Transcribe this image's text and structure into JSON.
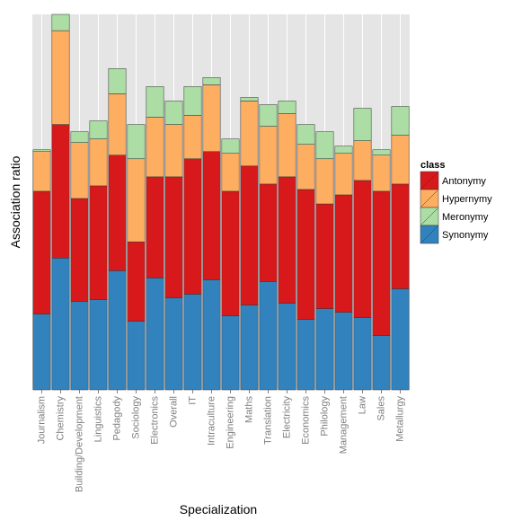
{
  "chart_data": {
    "type": "bar",
    "stacked": true,
    "xlabel": "Specialization",
    "ylabel": "Association ratio",
    "ylim": [
      0,
      1.04
    ],
    "grid": true,
    "legend_position": "right",
    "legend_title": "class",
    "categories": [
      "Journalism",
      "Chemistry",
      "Building/Development",
      "Linguistics",
      "Pedagody",
      "Sociology",
      "Electronics",
      "Overall",
      "IT",
      "Intraculture",
      "Engineering",
      "Maths",
      "Translation",
      "Electricity",
      "Economics",
      "Philology",
      "Management",
      "Law",
      "Sales",
      "Metallurgy"
    ],
    "series": [
      {
        "name": "Synonymy",
        "color": "#3182bd",
        "values": [
          0.21,
          0.365,
          0.245,
          0.25,
          0.33,
          0.19,
          0.31,
          0.255,
          0.265,
          0.305,
          0.205,
          0.235,
          0.3,
          0.24,
          0.195,
          0.225,
          0.215,
          0.2,
          0.15,
          0.28
        ]
      },
      {
        "name": "Antonymy",
        "color": "#d7191c",
        "values": [
          0.34,
          0.37,
          0.285,
          0.315,
          0.32,
          0.22,
          0.28,
          0.335,
          0.375,
          0.355,
          0.345,
          0.385,
          0.27,
          0.35,
          0.36,
          0.29,
          0.325,
          0.38,
          0.4,
          0.29
        ]
      },
      {
        "name": "Hypernymy",
        "color": "#fdae61",
        "values": [
          0.11,
          0.26,
          0.155,
          0.13,
          0.17,
          0.23,
          0.165,
          0.145,
          0.12,
          0.185,
          0.105,
          0.18,
          0.16,
          0.175,
          0.125,
          0.125,
          0.115,
          0.11,
          0.1,
          0.135
        ]
      },
      {
        "name": "Meronymy",
        "color": "#abdda4",
        "values": [
          0.005,
          0.045,
          0.03,
          0.05,
          0.07,
          0.095,
          0.085,
          0.065,
          0.08,
          0.02,
          0.04,
          0.01,
          0.06,
          0.035,
          0.055,
          0.075,
          0.02,
          0.09,
          0.015,
          0.08
        ]
      }
    ]
  }
}
